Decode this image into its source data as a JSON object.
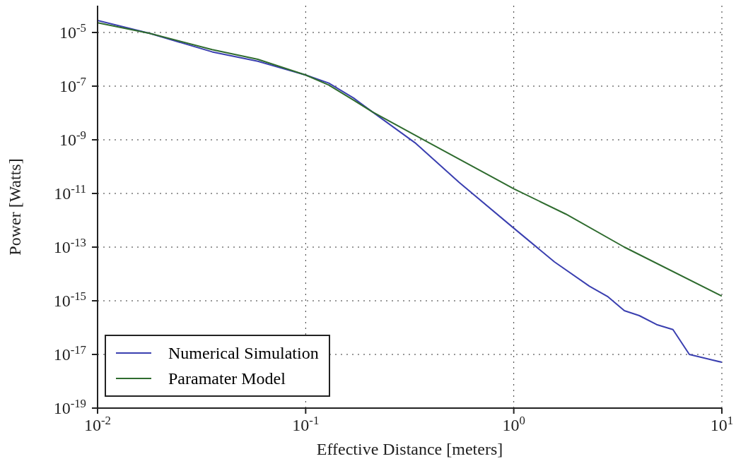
{
  "chart_data": {
    "type": "line",
    "xlabel": "Effective Distance [meters]",
    "ylabel": "Power [Watts]",
    "log": "xy",
    "grid": true,
    "legend": "bottom left",
    "line_style": "solid",
    "marker": "none",
    "xlim": [
      0.01,
      10
    ],
    "xticks": [
      {
        "value": 0.01,
        "label": "10$^{-2}$"
      },
      {
        "value": 0.1,
        "label": "10$^{-1}$"
      },
      {
        "value": 1,
        "label": "10$^{0}$"
      },
      {
        "value": 10,
        "label": "10$^{1}$"
      }
    ],
    "ylim": [
      1e-19,
      0.0001
    ],
    "yticks": [
      {
        "value": 1e-19,
        "label": "10$^{-19}$"
      },
      {
        "value": 1e-17,
        "label": "10$^{-17}$"
      },
      {
        "value": 1e-15,
        "label": "10$^{-15}$"
      },
      {
        "value": 1e-13,
        "label": "10$^{-13}$"
      },
      {
        "value": 1e-11,
        "label": "10$^{-11}$"
      },
      {
        "value": 1e-09,
        "label": "10$^{-9}$"
      },
      {
        "value": 1e-07,
        "label": "10$^{-7}$"
      },
      {
        "value": 1e-05,
        "label": "10$^{-5}$"
      }
    ],
    "series": [
      {
        "name": "Numerical Simulation",
        "color": "#3a3fb0",
        "x": [
          0.01,
          0.0178,
          0.0355,
          0.0589,
          0.1,
          0.129,
          0.17,
          0.209,
          0.335,
          0.546,
          1,
          1.57,
          2.31,
          2.84,
          3.4,
          4.01,
          4.86,
          5.82,
          6.98,
          10
        ],
        "values": [
          2.8e-05,
          9.3e-06,
          1.9e-06,
          8.5e-07,
          2.6e-07,
          1.3e-07,
          3.6e-08,
          1.1e-08,
          7.8e-10,
          2.6e-11,
          5.1e-13,
          2.8e-14,
          3.5e-15,
          1.4e-15,
          4.3e-16,
          2.8e-16,
          1.3e-16,
          8.5e-17,
          1e-17,
          5.1e-18
        ]
      },
      {
        "name": "Paramater Model",
        "color": "#2e6b2e",
        "x": [
          0.01,
          0.0178,
          0.0355,
          0.0589,
          0.1,
          0.129,
          0.17,
          0.209,
          0.391,
          1,
          1.78,
          3.4,
          10
        ],
        "values": [
          2.3e-05,
          9.3e-06,
          2.3e-06,
          1e-06,
          2.6e-07,
          1.1e-07,
          3e-08,
          1.1e-08,
          7.8e-10,
          1.5e-11,
          1.7e-12,
          1e-13,
          1.5e-15
        ]
      }
    ]
  }
}
